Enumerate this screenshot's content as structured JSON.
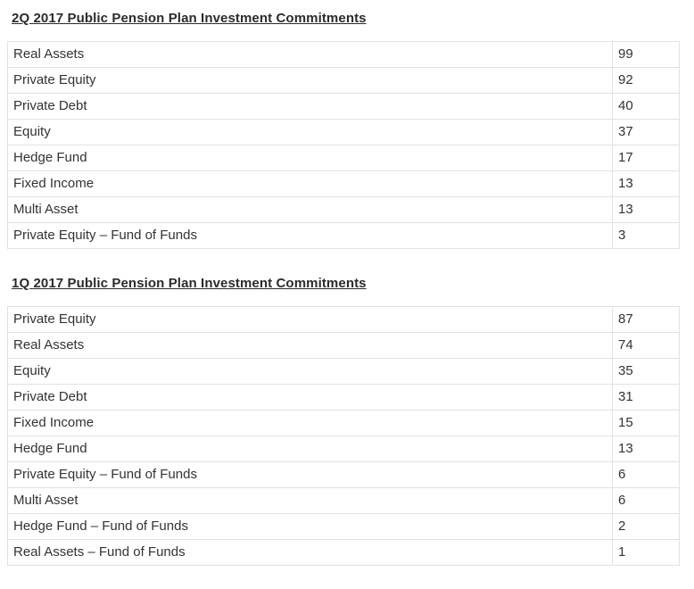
{
  "colors": {
    "background": "#ffffff",
    "border": "#e2e2e2",
    "text": "#333333",
    "heading": "#2b2b2b"
  },
  "tables": [
    {
      "title": "2Q 2017 Public Pension Plan Investment Commitments",
      "rows": [
        {
          "label": "Real Assets",
          "value": "99"
        },
        {
          "label": "Private Equity",
          "value": "92"
        },
        {
          "label": "Private Debt",
          "value": "40"
        },
        {
          "label": "Equity",
          "value": "37"
        },
        {
          "label": "Hedge Fund",
          "value": "17"
        },
        {
          "label": "Fixed Income",
          "value": "13"
        },
        {
          "label": "Multi Asset",
          "value": "13"
        },
        {
          "label": "Private Equity – Fund of Funds",
          "value": "3"
        }
      ]
    },
    {
      "title": "1Q 2017 Public Pension Plan Investment Commitments",
      "rows": [
        {
          "label": "Private Equity",
          "value": "87"
        },
        {
          "label": "Real Assets",
          "value": "74"
        },
        {
          "label": "Equity",
          "value": "35"
        },
        {
          "label": "Private Debt",
          "value": "31"
        },
        {
          "label": "Fixed Income",
          "value": "15"
        },
        {
          "label": "Hedge Fund",
          "value": "13"
        },
        {
          "label": "Private Equity – Fund of Funds",
          "value": "6"
        },
        {
          "label": "Multi Asset",
          "value": "6"
        },
        {
          "label": "Hedge Fund – Fund of Funds",
          "value": "2"
        },
        {
          "label": "Real Assets – Fund of Funds",
          "value": "1"
        }
      ]
    }
  ]
}
